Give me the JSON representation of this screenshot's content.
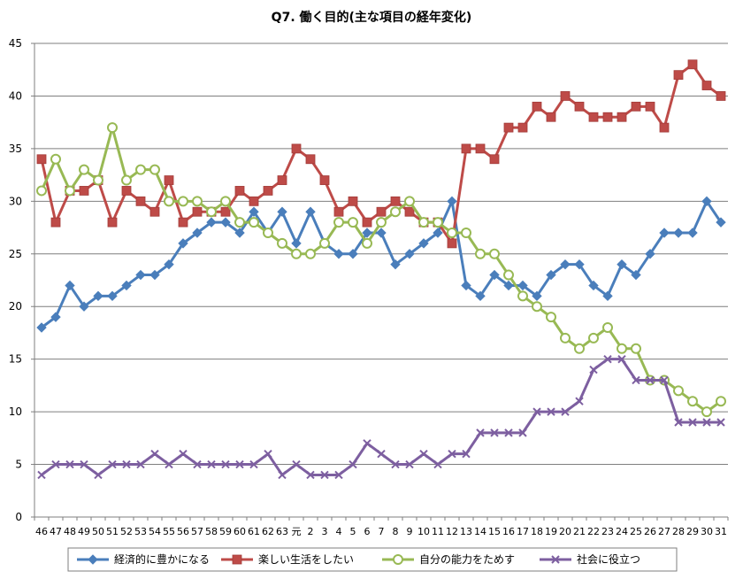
{
  "chart_data": {
    "type": "line",
    "title": "Q7. 働く目的(主な項目の経年変化)",
    "ylim": [
      0,
      45
    ],
    "yticks": [
      0,
      5,
      10,
      15,
      20,
      25,
      30,
      35,
      40,
      45
    ],
    "grid": "horizontal",
    "legend_position": "bottom",
    "categories": [
      "46",
      "47",
      "48",
      "49",
      "50",
      "51",
      "52",
      "53",
      "54",
      "55",
      "56",
      "57",
      "58",
      "59",
      "60",
      "61",
      "62",
      "63",
      "元",
      "2",
      "3",
      "4",
      "5",
      "6",
      "7",
      "8",
      "9",
      "10",
      "11",
      "12",
      "13",
      "14",
      "15",
      "16",
      "17",
      "18",
      "19",
      "20",
      "21",
      "22",
      "23",
      "24",
      "25",
      "26",
      "27",
      "28",
      "29",
      "30",
      "31"
    ],
    "series": [
      {
        "name": "経済的に豊かになる",
        "color": "#4a7ebb",
        "marker": "diamond",
        "values": [
          18,
          19,
          22,
          20,
          21,
          21,
          22,
          23,
          23,
          24,
          26,
          27,
          28,
          28,
          27,
          29,
          27,
          29,
          26,
          29,
          26,
          25,
          25,
          27,
          27,
          24,
          25,
          26,
          27,
          30,
          22,
          21,
          23,
          22,
          22,
          21,
          23,
          24,
          24,
          22,
          21,
          24,
          23,
          25,
          27,
          27,
          27,
          30,
          28
        ]
      },
      {
        "name": "楽しい生活をしたい",
        "color": "#be4b48",
        "marker": "square",
        "values": [
          34,
          28,
          31,
          31,
          32,
          28,
          31,
          30,
          29,
          32,
          28,
          29,
          29,
          29,
          31,
          30,
          31,
          32,
          35,
          34,
          32,
          29,
          30,
          28,
          29,
          30,
          29,
          28,
          28,
          26,
          35,
          35,
          34,
          37,
          37,
          39,
          38,
          40,
          39,
          38,
          38,
          38,
          39,
          39,
          37,
          42,
          43,
          41,
          40
        ]
      },
      {
        "name": "自分の能力をためす",
        "color": "#98b954",
        "marker": "circle",
        "values": [
          31,
          34,
          31,
          33,
          32,
          37,
          32,
          33,
          33,
          30,
          30,
          30,
          29,
          30,
          28,
          28,
          27,
          26,
          25,
          25,
          26,
          28,
          28,
          26,
          28,
          29,
          30,
          28,
          28,
          27,
          27,
          25,
          25,
          23,
          21,
          20,
          19,
          17,
          16,
          17,
          18,
          16,
          16,
          13,
          13,
          12,
          11,
          10,
          11
        ]
      },
      {
        "name": "社会に役立つ",
        "color": "#7d5fa0",
        "marker": "x",
        "values": [
          4,
          5,
          5,
          5,
          4,
          5,
          5,
          5,
          6,
          5,
          6,
          5,
          5,
          5,
          5,
          5,
          6,
          4,
          5,
          4,
          4,
          4,
          5,
          7,
          6,
          5,
          5,
          6,
          5,
          6,
          6,
          8,
          8,
          8,
          8,
          10,
          10,
          10,
          11,
          14,
          15,
          15,
          13,
          13,
          13,
          9,
          9,
          9,
          9
        ]
      }
    ]
  }
}
